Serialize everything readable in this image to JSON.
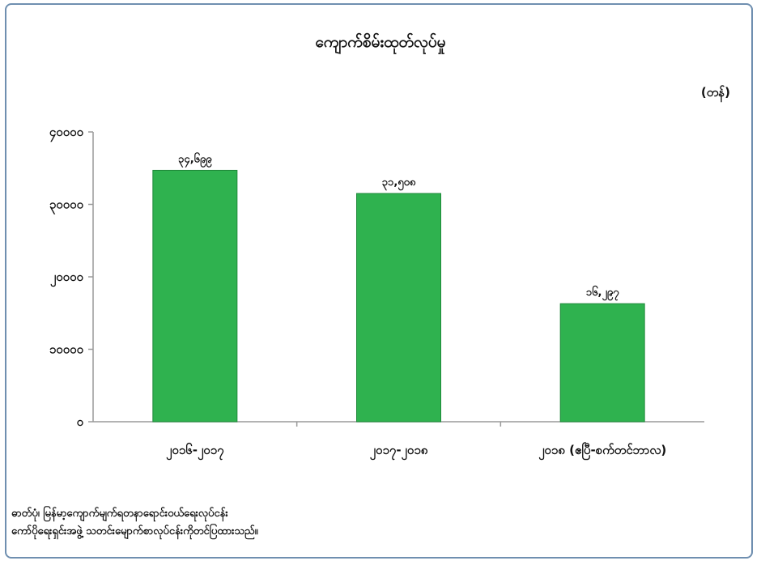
{
  "chart_data": {
    "type": "bar",
    "title": "ကျောက်စိမ်းထုတ်လုပ်မှု",
    "unit": "(တန်)",
    "categories": [
      "၂၀၁၆-၂၀၁၇",
      "၂၀၁၇-၂၀၁၈",
      "၂၀၁၈ (ဧပြီ-စက်တင်ဘာလ)"
    ],
    "values": [
      34699,
      31508,
      16297
    ],
    "data_labels": [
      "၃၄,၆၉၉",
      "၃၁,၅၀၈",
      "၁၆,၂၉၇"
    ],
    "yticks": [
      0,
      10000,
      20000,
      30000,
      40000
    ],
    "ytick_labels": [
      "၀",
      "၁၀၀၀၀",
      "၂၀၀၀၀",
      "၃၀၀၀၀",
      "၄၀၀၀၀"
    ],
    "ylim": [
      0,
      40000
    ],
    "bar_color": "#2fb24f",
    "grid": false,
    "legend": "none"
  },
  "source": {
    "line1": "ဓာတ်ပုံ၊ မြန်မာ့ကျောက်မျက်ရတနာရောင်းဝယ်ရေးလုပ်ငန်း",
    "line2": "ကော်ပိုရေးရှင်းအဖွဲ့ သတင်းမျောက်စာလုပ်ငန်းကိုတင်ပြထားသည်။"
  }
}
